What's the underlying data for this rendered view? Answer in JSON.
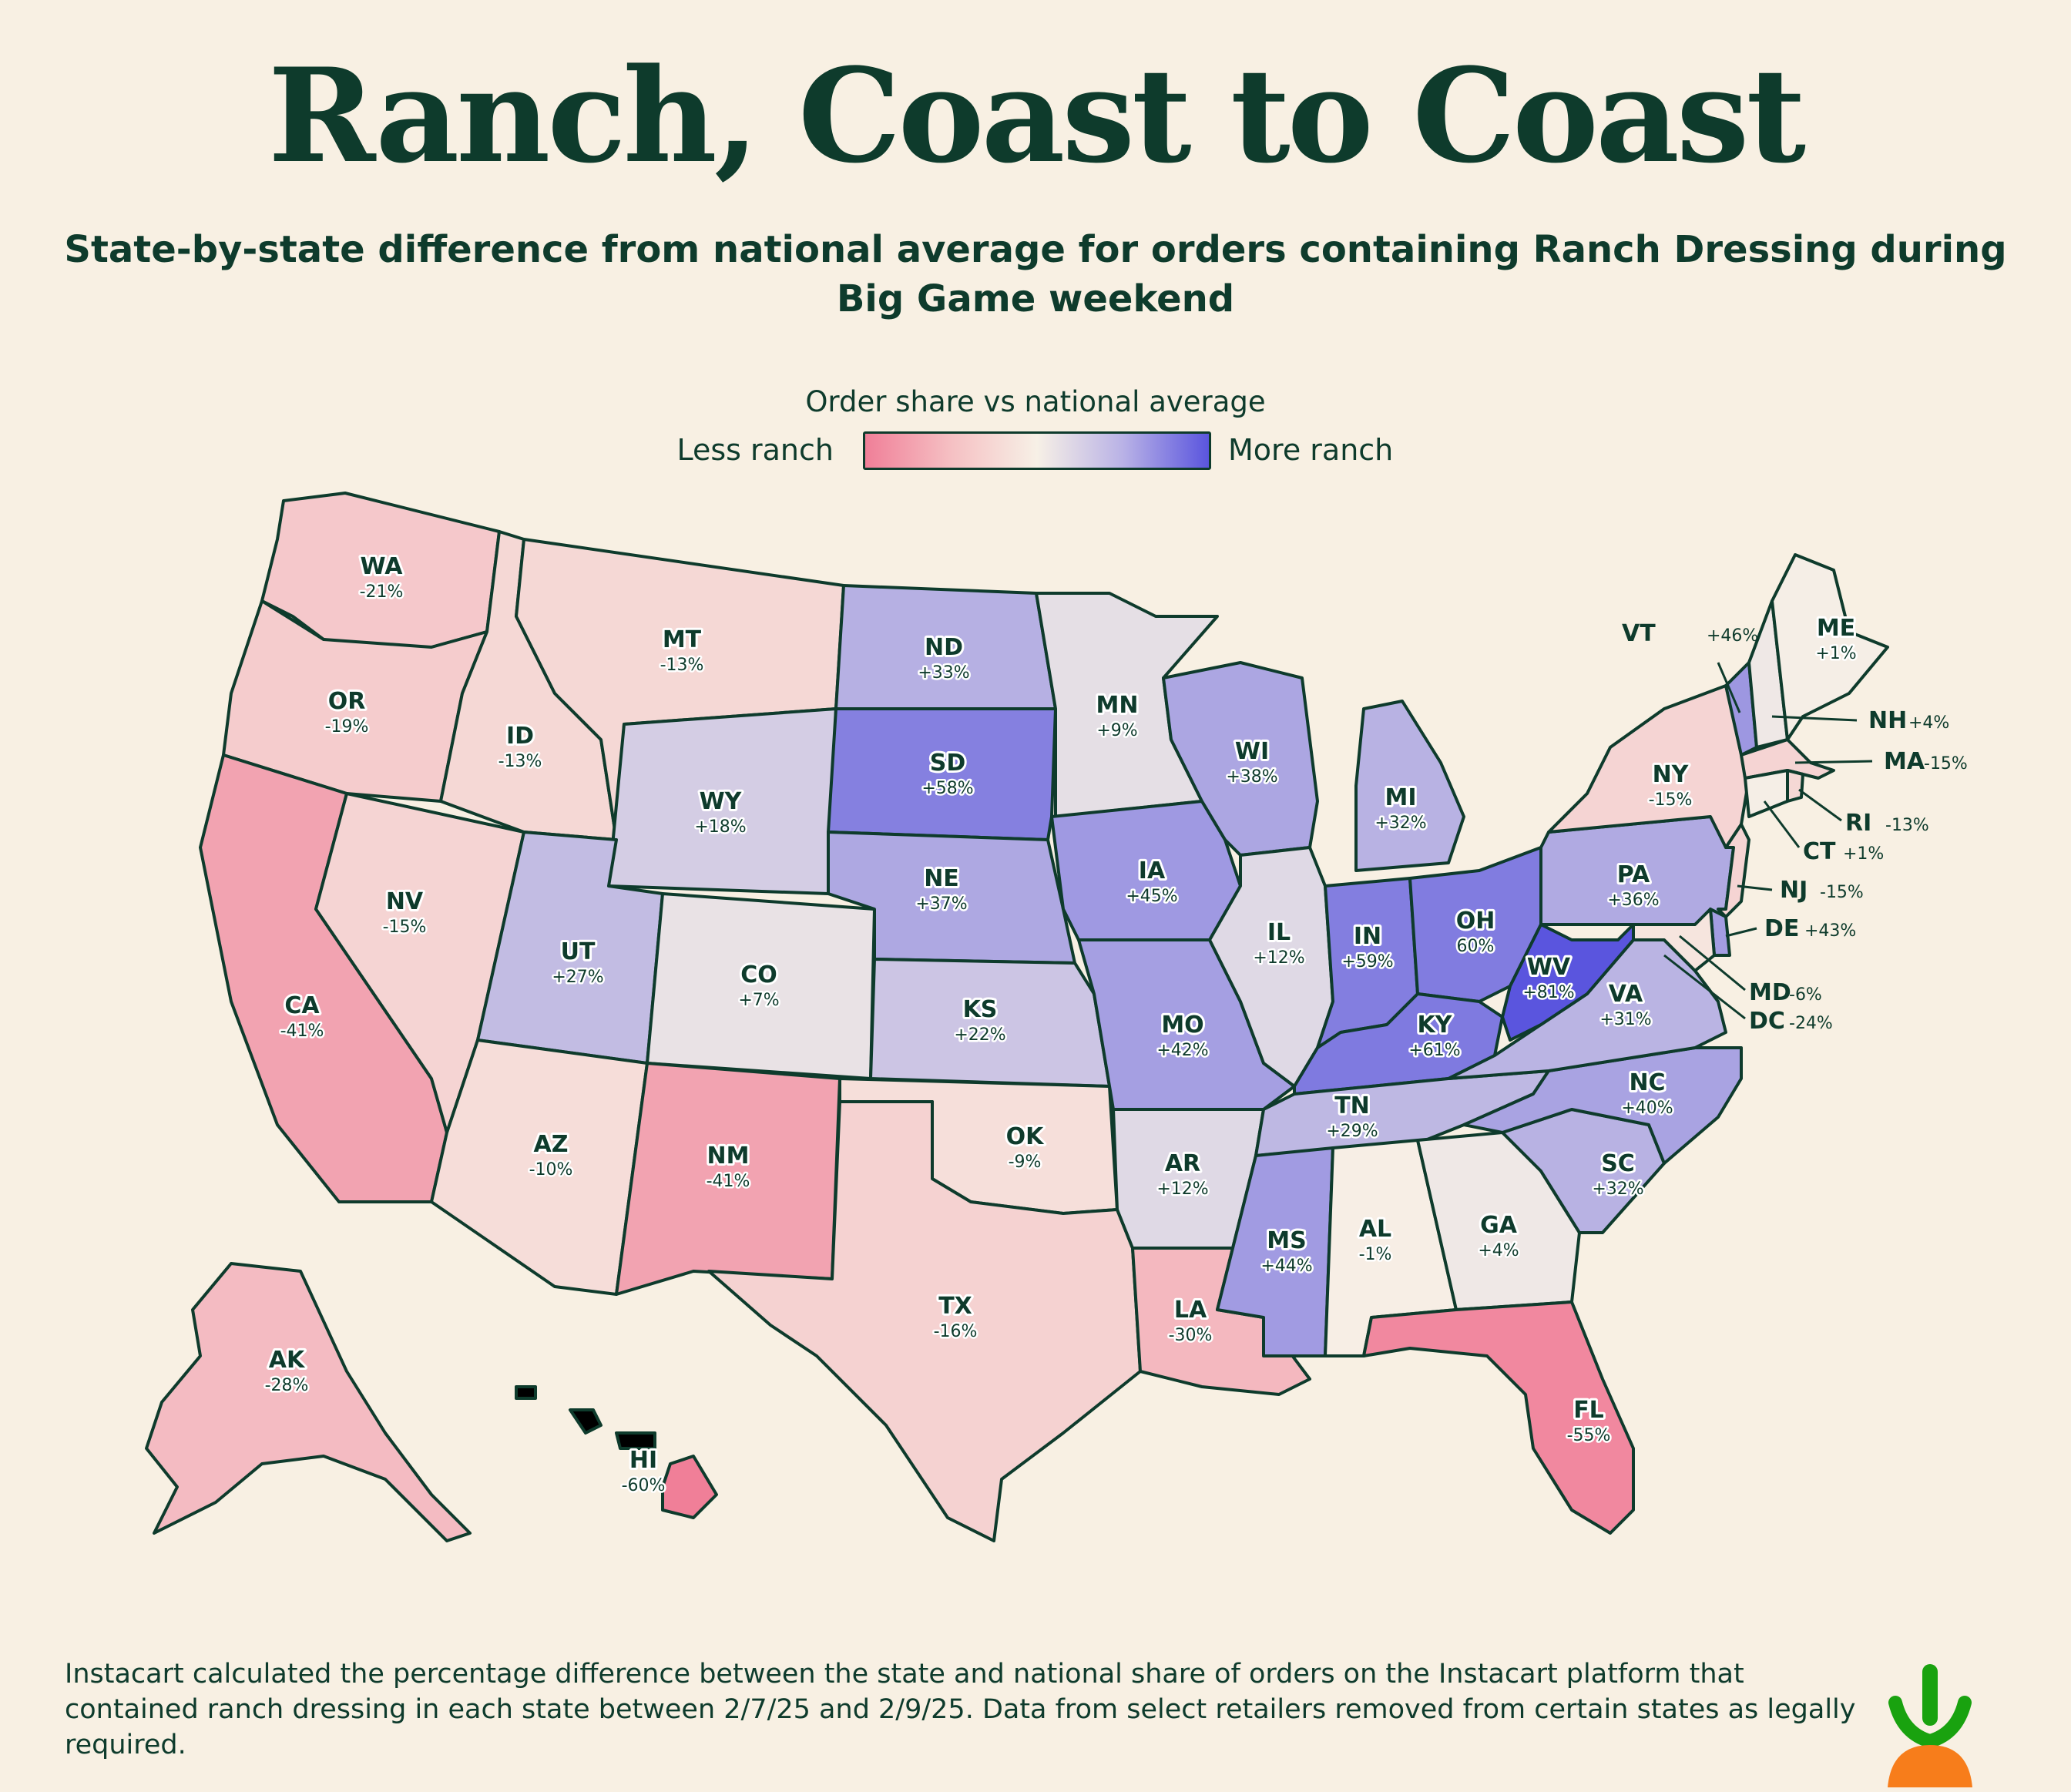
{
  "title": "Ranch, Coast to Coast",
  "subtitle": "State-by-state difference from national average for orders containing Ranch Dressing during Big Game weekend",
  "legend": {
    "title": "Order share vs national average",
    "less_label": "Less ranch",
    "more_label": "More ranch",
    "color_low": "#f07f98",
    "color_mid": "#f7f0e6",
    "color_high": "#5a55de"
  },
  "states": [
    {
      "abbr": "WA",
      "value": "-21%",
      "pct": -21
    },
    {
      "abbr": "OR",
      "value": "-19%",
      "pct": -19
    },
    {
      "abbr": "CA",
      "value": "-41%",
      "pct": -41
    },
    {
      "abbr": "NV",
      "value": "-15%",
      "pct": -15
    },
    {
      "abbr": "ID",
      "value": "-13%",
      "pct": -13
    },
    {
      "abbr": "MT",
      "value": "-13%",
      "pct": -13
    },
    {
      "abbr": "WY",
      "value": "+18%",
      "pct": 18
    },
    {
      "abbr": "UT",
      "value": "+27%",
      "pct": 27
    },
    {
      "abbr": "AZ",
      "value": "-10%",
      "pct": -10
    },
    {
      "abbr": "CO",
      "value": "+7%",
      "pct": 7
    },
    {
      "abbr": "NM",
      "value": "-41%",
      "pct": -41
    },
    {
      "abbr": "ND",
      "value": "+33%",
      "pct": 33
    },
    {
      "abbr": "SD",
      "value": "+58%",
      "pct": 58
    },
    {
      "abbr": "NE",
      "value": "+37%",
      "pct": 37
    },
    {
      "abbr": "KS",
      "value": "+22%",
      "pct": 22
    },
    {
      "abbr": "OK",
      "value": "-9%",
      "pct": -9
    },
    {
      "abbr": "TX",
      "value": "-16%",
      "pct": -16
    },
    {
      "abbr": "MN",
      "value": "+9%",
      "pct": 9
    },
    {
      "abbr": "IA",
      "value": "+45%",
      "pct": 45
    },
    {
      "abbr": "MO",
      "value": "+42%",
      "pct": 42
    },
    {
      "abbr": "AR",
      "value": "+12%",
      "pct": 12
    },
    {
      "abbr": "LA",
      "value": "-30%",
      "pct": -30
    },
    {
      "abbr": "WI",
      "value": "+38%",
      "pct": 38
    },
    {
      "abbr": "IL",
      "value": "+12%",
      "pct": 12
    },
    {
      "abbr": "MI",
      "value": "+32%",
      "pct": 32
    },
    {
      "abbr": "IN",
      "value": "+59%",
      "pct": 59
    },
    {
      "abbr": "OH",
      "value": "60%",
      "pct": 60
    },
    {
      "abbr": "KY",
      "value": "+61%",
      "pct": 61
    },
    {
      "abbr": "TN",
      "value": "+29%",
      "pct": 29
    },
    {
      "abbr": "MS",
      "value": "+44%",
      "pct": 44
    },
    {
      "abbr": "AL",
      "value": "-1%",
      "pct": -1
    },
    {
      "abbr": "GA",
      "value": "+4%",
      "pct": 4
    },
    {
      "abbr": "FL",
      "value": "-55%",
      "pct": -55
    },
    {
      "abbr": "SC",
      "value": "+32%",
      "pct": 32
    },
    {
      "abbr": "NC",
      "value": "+40%",
      "pct": 40
    },
    {
      "abbr": "VA",
      "value": "+31%",
      "pct": 31
    },
    {
      "abbr": "WV",
      "value": "+81%",
      "pct": 81
    },
    {
      "abbr": "PA",
      "value": "+36%",
      "pct": 36
    },
    {
      "abbr": "NY",
      "value": "-15%",
      "pct": -15
    },
    {
      "abbr": "ME",
      "value": "+1%",
      "pct": 1
    },
    {
      "abbr": "AK",
      "value": "-28%",
      "pct": -28
    },
    {
      "abbr": "HI",
      "value": "-60%",
      "pct": -60
    }
  ],
  "callouts": [
    {
      "abbr": "VT",
      "value": "+46%",
      "pct": 46
    },
    {
      "abbr": "NH",
      "value": "+4%",
      "pct": 4
    },
    {
      "abbr": "MA",
      "value": "-15%",
      "pct": -15
    },
    {
      "abbr": "RI",
      "value": "-13%",
      "pct": -13
    },
    {
      "abbr": "CT",
      "value": "+1%",
      "pct": 1
    },
    {
      "abbr": "NJ",
      "value": "-15%",
      "pct": -15
    },
    {
      "abbr": "DE",
      "value": "+43%",
      "pct": 43
    },
    {
      "abbr": "MD",
      "value": "-6%",
      "pct": -6
    },
    {
      "abbr": "DC",
      "value": "-24%",
      "pct": -24
    }
  ],
  "footnote": "Instacart calculated the percentage difference between the state and national share of orders on the Instacart platform that contained ranch dressing in each state between 2/7/25 and 2/9/25. Data from select retailers removed from certain states as legally required.",
  "logo_icon": "carrot-logo-icon"
}
